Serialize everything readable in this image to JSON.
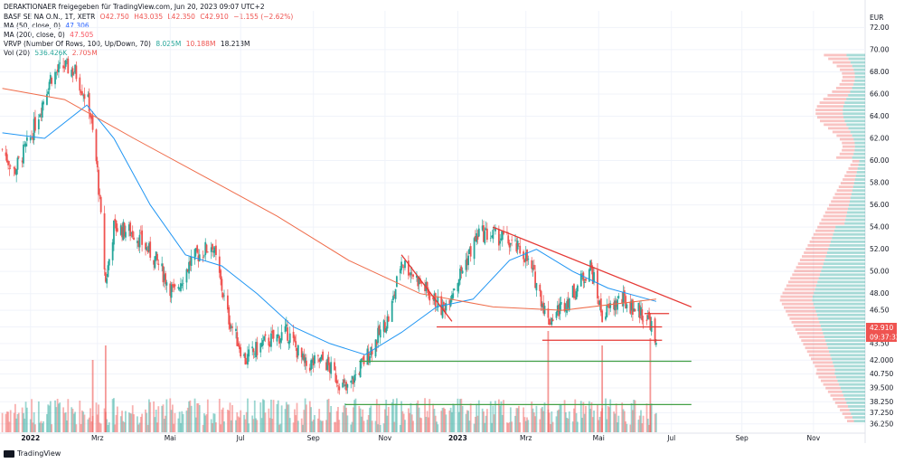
{
  "header": {
    "line1": "DERAKTIONAER freigegeben für TradingView.com, Jun 20, 2023 09:07 UTC+2",
    "line2_symbol": "BASF SE NA O.N., 1T, XETR",
    "line2_o": "O42.750",
    "line2_h": "H43.035",
    "line2_l": "L42.350",
    "line2_c": "C42.910",
    "line2_chg": "−1.155 (−2.62%)",
    "ma50_label": "MA (50, close, 0)",
    "ma50_value": "47.306",
    "ma200_label": "MA (200, close, 0)",
    "ma200_value": "47.505",
    "vrvp_label": "VRVP (Number Of Rows, 100, Up/Down, 70)",
    "vrvp_up": "8.025M",
    "vrvp_down": "10.188M",
    "vrvp_total": "18.213M",
    "vol_label": "Vol (20)",
    "vol_value": "536.426K",
    "vol_ma": "2.705M"
  },
  "currency": "EUR",
  "price_label": "42.910",
  "countdown_label": "09:37:32",
  "footer_text": "TradingView",
  "colors": {
    "up": "#26a69a",
    "down": "#ef5350",
    "ma50": "#2196f3",
    "ma200": "#ef6c4a",
    "trend": "#e53935",
    "support": "#43a047"
  },
  "chart_data": {
    "type": "line",
    "title": "BASF SE NA O.N., 1T, XETR",
    "ylabel": "EUR",
    "ylim": [
      35.5,
      73.5
    ],
    "y_ticks": [
      "72.00",
      "70.00",
      "68.00",
      "66.00",
      "64.00",
      "62.00",
      "60.00",
      "58.00",
      "56.00",
      "54.00",
      "52.00",
      "50.00",
      "48.00",
      "46.50",
      "45.00",
      "43.50",
      "42.000",
      "40.750",
      "39.500",
      "38.250",
      "37.250",
      "36.250"
    ],
    "x_ticks": [
      {
        "label": "2022",
        "date": "2022-01-03"
      },
      {
        "label": "Mrz",
        "date": "2022-03-01"
      },
      {
        "label": "Mai",
        "date": "2022-05-02"
      },
      {
        "label": "Jul",
        "date": "2022-07-01"
      },
      {
        "label": "Sep",
        "date": "2022-09-01"
      },
      {
        "label": "Nov",
        "date": "2022-11-01"
      },
      {
        "label": "2023",
        "date": "2023-01-02"
      },
      {
        "label": "Mrz",
        "date": "2023-03-01"
      },
      {
        "label": "Mai",
        "date": "2023-05-02"
      },
      {
        "label": "Jul",
        "date": "2023-07-03"
      },
      {
        "label": "Sep",
        "date": "2023-09-01"
      },
      {
        "label": "Nov",
        "date": "2023-11-01"
      }
    ],
    "price_path": [
      {
        "date": "2021-12-10",
        "close": 61.0
      },
      {
        "date": "2021-12-20",
        "close": 59.0
      },
      {
        "date": "2022-01-03",
        "close": 62.0
      },
      {
        "date": "2022-01-20",
        "close": 67.5
      },
      {
        "date": "2022-02-01",
        "close": 68.5
      },
      {
        "date": "2022-02-10",
        "close": 68.0
      },
      {
        "date": "2022-02-22",
        "close": 65.0
      },
      {
        "date": "2022-03-01",
        "close": 59.0
      },
      {
        "date": "2022-03-08",
        "close": 49.0
      },
      {
        "date": "2022-03-15",
        "close": 54.0
      },
      {
        "date": "2022-04-01",
        "close": 53.5
      },
      {
        "date": "2022-04-20",
        "close": 51.0
      },
      {
        "date": "2022-05-05",
        "close": 48.0
      },
      {
        "date": "2022-05-20",
        "close": 51.0
      },
      {
        "date": "2022-06-07",
        "close": 52.5
      },
      {
        "date": "2022-06-20",
        "close": 46.0
      },
      {
        "date": "2022-07-05",
        "close": 42.0
      },
      {
        "date": "2022-07-20",
        "close": 43.5
      },
      {
        "date": "2022-08-10",
        "close": 44.5
      },
      {
        "date": "2022-08-25",
        "close": 41.5
      },
      {
        "date": "2022-09-10",
        "close": 42.0
      },
      {
        "date": "2022-09-29",
        "close": 39.2
      },
      {
        "date": "2022-10-20",
        "close": 43.0
      },
      {
        "date": "2022-11-05",
        "close": 46.0
      },
      {
        "date": "2022-11-15",
        "close": 51.0
      },
      {
        "date": "2022-12-01",
        "close": 49.0
      },
      {
        "date": "2022-12-20",
        "close": 46.5
      },
      {
        "date": "2023-01-05",
        "close": 50.0
      },
      {
        "date": "2023-01-20",
        "close": 53.5
      },
      {
        "date": "2023-02-10",
        "close": 53.0
      },
      {
        "date": "2023-02-28",
        "close": 51.5
      },
      {
        "date": "2023-03-10",
        "close": 49.0
      },
      {
        "date": "2023-03-20",
        "close": 45.5
      },
      {
        "date": "2023-04-10",
        "close": 48.0
      },
      {
        "date": "2023-04-25",
        "close": 50.5
      },
      {
        "date": "2023-05-05",
        "close": 46.0
      },
      {
        "date": "2023-05-20",
        "close": 47.5
      },
      {
        "date": "2023-06-05",
        "close": 46.5
      },
      {
        "date": "2023-06-15",
        "close": 45.5
      },
      {
        "date": "2023-06-20",
        "close": 42.91
      }
    ],
    "series": [
      {
        "name": "MA (50, close, 0)",
        "points": [
          {
            "date": "2021-12-10",
            "value": 62.5
          },
          {
            "date": "2022-01-15",
            "value": 62.0
          },
          {
            "date": "2022-02-20",
            "value": 65.0
          },
          {
            "date": "2022-03-15",
            "value": 62.0
          },
          {
            "date": "2022-04-15",
            "value": 56.0
          },
          {
            "date": "2022-05-15",
            "value": 51.5
          },
          {
            "date": "2022-06-15",
            "value": 50.5
          },
          {
            "date": "2022-07-15",
            "value": 48.0
          },
          {
            "date": "2022-08-15",
            "value": 45.0
          },
          {
            "date": "2022-09-15",
            "value": 43.5
          },
          {
            "date": "2022-10-15",
            "value": 42.5
          },
          {
            "date": "2022-11-15",
            "value": 44.5
          },
          {
            "date": "2022-12-15",
            "value": 46.8
          },
          {
            "date": "2023-01-15",
            "value": 47.5
          },
          {
            "date": "2023-02-15",
            "value": 51.0
          },
          {
            "date": "2023-03-10",
            "value": 52.0
          },
          {
            "date": "2023-04-10",
            "value": 50.0
          },
          {
            "date": "2023-05-10",
            "value": 48.5
          },
          {
            "date": "2023-06-20",
            "value": 47.3
          }
        ]
      },
      {
        "name": "MA (200, close, 0)",
        "points": [
          {
            "date": "2021-12-10",
            "value": 66.5
          },
          {
            "date": "2022-02-01",
            "value": 65.5
          },
          {
            "date": "2022-04-01",
            "value": 62.0
          },
          {
            "date": "2022-06-01",
            "value": 58.5
          },
          {
            "date": "2022-08-01",
            "value": 55.0
          },
          {
            "date": "2022-10-01",
            "value": 51.0
          },
          {
            "date": "2022-12-01",
            "value": 48.0
          },
          {
            "date": "2023-02-01",
            "value": 46.8
          },
          {
            "date": "2023-04-01",
            "value": 46.5
          },
          {
            "date": "2023-06-20",
            "value": 47.5
          }
        ]
      }
    ],
    "trendlines": [
      {
        "from": {
          "date": "2023-02-01",
          "value": 54.0
        },
        "to": {
          "date": "2023-07-20",
          "value": 46.8
        },
        "color": "#e53935"
      },
      {
        "from": {
          "date": "2022-11-15",
          "value": 51.5
        },
        "to": {
          "date": "2022-12-28",
          "value": 45.5
        },
        "color": "#e53935"
      },
      {
        "from": {
          "date": "2022-12-15",
          "value": 45.0
        },
        "to": {
          "date": "2023-06-25",
          "value": 45.0
        },
        "color": "#e53935"
      },
      {
        "from": {
          "date": "2023-03-15",
          "value": 43.8
        },
        "to": {
          "date": "2023-06-25",
          "value": 43.8
        },
        "color": "#e53935"
      },
      {
        "from": {
          "date": "2023-06-10",
          "value": 46.2
        },
        "to": {
          "date": "2023-07-01",
          "value": 46.2
        },
        "color": "#e53935"
      },
      {
        "from": {
          "date": "2022-10-10",
          "value": 41.9
        },
        "to": {
          "date": "2023-07-20",
          "value": 41.9
        },
        "color": "#43a047"
      },
      {
        "from": {
          "date": "2022-09-28",
          "value": 38.0
        },
        "to": {
          "date": "2023-07-20",
          "value": 38.0
        },
        "color": "#43a047"
      }
    ],
    "volume_peaks": [
      {
        "date": "2022-02-25",
        "value": 10
      },
      {
        "date": "2022-03-08",
        "value": 12
      },
      {
        "date": "2023-03-20",
        "value": 14
      },
      {
        "date": "2023-05-05",
        "value": 12
      },
      {
        "date": "2023-06-15",
        "value": 13
      }
    ],
    "grid": true,
    "legend": "top-left"
  }
}
